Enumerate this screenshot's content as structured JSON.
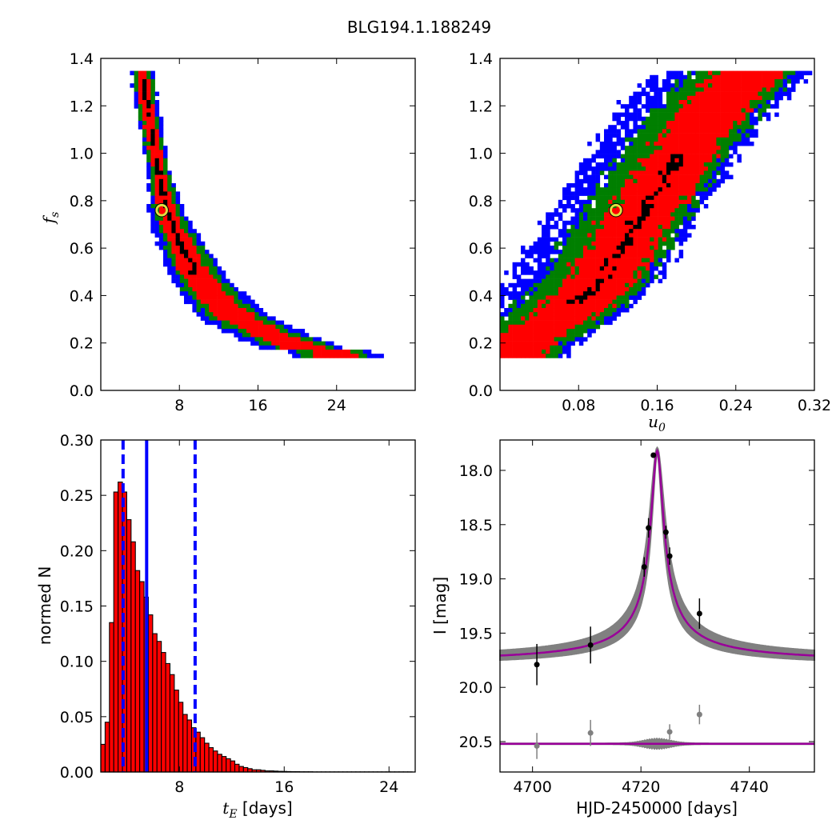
{
  "figure": {
    "title": "BLG194.1.188249"
  },
  "chart_data": [
    {
      "type": "heatmap",
      "panel": "top-left",
      "xlabel": "",
      "ylabel": "f_s",
      "xlim": [
        0,
        32
      ],
      "ylim": [
        0.0,
        1.4
      ],
      "xticks": [
        "8",
        "16",
        "24"
      ],
      "yticks": [
        "0.0",
        "0.2",
        "0.4",
        "0.6",
        "0.8",
        "1.0",
        "1.2",
        "1.4"
      ],
      "marker": {
        "x": 6.2,
        "y": 0.76
      },
      "curve_ridge": [
        {
          "x": 4.2,
          "y": 1.34
        },
        {
          "x": 4.8,
          "y": 1.18
        },
        {
          "x": 5.4,
          "y": 1.04
        },
        {
          "x": 6.0,
          "y": 0.9
        },
        {
          "x": 6.6,
          "y": 0.78
        },
        {
          "x": 7.4,
          "y": 0.68
        },
        {
          "x": 8.4,
          "y": 0.6
        },
        {
          "x": 9.6,
          "y": 0.5
        },
        {
          "x": 11.0,
          "y": 0.42
        },
        {
          "x": 12.8,
          "y": 0.34
        },
        {
          "x": 15.0,
          "y": 0.28
        },
        {
          "x": 17.5,
          "y": 0.23
        },
        {
          "x": 20.5,
          "y": 0.18
        },
        {
          "x": 24.0,
          "y": 0.15
        },
        {
          "x": 25.5,
          "y": 0.15
        }
      ],
      "levels_colors": {
        "outer": "#0000ff",
        "mid": "#007f00",
        "inner": "#ff0000",
        "core": "#000000"
      }
    },
    {
      "type": "heatmap",
      "panel": "top-right",
      "xlabel": "u_0",
      "ylabel": "",
      "xlim": [
        0.0,
        0.32
      ],
      "ylim": [
        0.0,
        1.4
      ],
      "xticks": [
        "0.08",
        "0.16",
        "0.24",
        "0.32"
      ],
      "yticks": [
        "0.0",
        "0.2",
        "0.4",
        "0.6",
        "0.8",
        "1.0",
        "1.2",
        "1.4"
      ],
      "marker": {
        "x": 0.118,
        "y": 0.76
      },
      "band": [
        {
          "x": 0.0,
          "y": 0.2
        },
        {
          "x": 0.04,
          "y": 0.3
        },
        {
          "x": 0.08,
          "y": 0.45
        },
        {
          "x": 0.12,
          "y": 0.72
        },
        {
          "x": 0.16,
          "y": 0.97
        },
        {
          "x": 0.2,
          "y": 1.2
        },
        {
          "x": 0.235,
          "y": 1.34
        }
      ],
      "levels_colors": {
        "outer": "#0000ff",
        "mid": "#007f00",
        "inner": "#ff0000",
        "core": "#000000"
      }
    },
    {
      "type": "bar",
      "panel": "bottom-left",
      "xlabel": "t_E [days]",
      "ylabel": "normed N",
      "xlim": [
        2,
        26
      ],
      "ylim": [
        0.0,
        0.3
      ],
      "xticks": [
        "8",
        "16",
        "24"
      ],
      "yticks": [
        "0.00",
        "0.05",
        "0.10",
        "0.15",
        "0.20",
        "0.25",
        "0.30"
      ],
      "bin_start": 2.0,
      "bin_width": 0.33,
      "values": [
        0.025,
        0.045,
        0.135,
        0.253,
        0.262,
        0.253,
        0.228,
        0.208,
        0.182,
        0.172,
        0.158,
        0.142,
        0.125,
        0.118,
        0.108,
        0.098,
        0.088,
        0.074,
        0.063,
        0.052,
        0.047,
        0.04,
        0.036,
        0.031,
        0.026,
        0.022,
        0.019,
        0.016,
        0.014,
        0.012,
        0.01,
        0.007,
        0.005,
        0.004,
        0.003,
        0.002,
        0.002,
        0.0015,
        0.001,
        0.001,
        0.0008,
        0.0006,
        0.0005,
        0.0004,
        0.0003,
        0.0003,
        0.0002,
        0.0002,
        0.0002,
        0.0001,
        0.0001,
        0.0001,
        0.0001,
        0.0001,
        0.0001,
        0.0001,
        0.0001,
        0.0001,
        0.0001,
        0.0001,
        0.0001,
        0.0001,
        0.0001,
        0.0001,
        0.0001,
        0.0001,
        0.0001,
        0.0001,
        0.0001,
        0.0001,
        0.0001,
        0.0001
      ],
      "median_line": 5.5,
      "interval_lines": [
        3.7,
        9.2
      ],
      "bar_color": "#ff0000",
      "line_color": "#0000ff"
    },
    {
      "type": "line",
      "panel": "bottom-right",
      "xlabel": "HJD-2450000 [days]",
      "ylabel": "I [mag]",
      "xlim": [
        4694,
        4752
      ],
      "ylim": [
        20.78,
        17.72
      ],
      "xticks": [
        "4700",
        "4720",
        "4740"
      ],
      "yticks": [
        "18.0",
        "18.5",
        "19.0",
        "19.5",
        "20.0",
        "20.5"
      ],
      "model": {
        "t0": 4723.0,
        "baseline": 19.78,
        "peak": 17.82,
        "width": 1.6,
        "color": "#990099"
      },
      "points": [
        {
          "x": 4700.8,
          "y": 19.79,
          "err": 0.19
        },
        {
          "x": 4710.7,
          "y": 19.61,
          "err": 0.17
        },
        {
          "x": 4720.6,
          "y": 18.89,
          "err": 0.09
        },
        {
          "x": 4721.4,
          "y": 18.53,
          "err": 0.09
        },
        {
          "x": 4722.3,
          "y": 17.86,
          "err": 0.02
        },
        {
          "x": 4724.6,
          "y": 18.57,
          "err": 0.06
        },
        {
          "x": 4725.3,
          "y": 18.79,
          "err": 0.08
        },
        {
          "x": 4730.8,
          "y": 19.32,
          "err": 0.14
        }
      ],
      "residual_baseline": 20.52,
      "residual_points": [
        {
          "x": 4700.8,
          "y": 20.54,
          "err": 0.12
        },
        {
          "x": 4710.7,
          "y": 20.42,
          "err": 0.12
        },
        {
          "x": 4725.3,
          "y": 20.41,
          "err": 0.07
        },
        {
          "x": 4730.8,
          "y": 20.25,
          "err": 0.09
        }
      ]
    }
  ]
}
